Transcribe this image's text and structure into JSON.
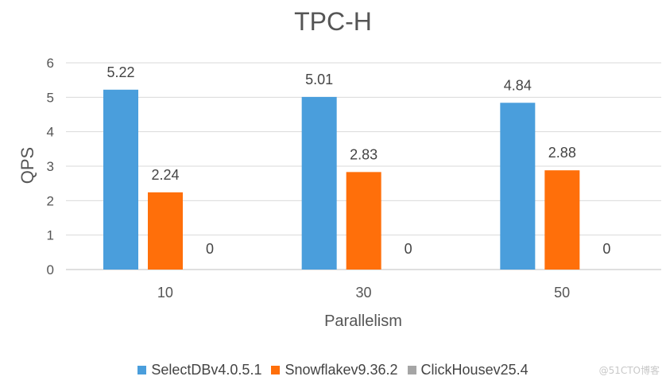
{
  "chart_data": {
    "type": "bar",
    "title": "TPC-H",
    "xlabel": "Parallelism",
    "ylabel": "QPS",
    "categories": [
      "10",
      "30",
      "50"
    ],
    "ylim": [
      0,
      6
    ],
    "yticks": [
      "0",
      "1",
      "2",
      "3",
      "4",
      "5",
      "6"
    ],
    "grid": true,
    "legend_position": "bottom",
    "series": [
      {
        "name": "SelectDBv4.0.5.1",
        "values": [
          5.22,
          5.01,
          4.84
        ],
        "labels": [
          "5.22",
          "5.01",
          "4.84"
        ],
        "color": "#4A9EDC"
      },
      {
        "name": "Snowflakev9.36.2",
        "values": [
          2.24,
          2.83,
          2.88
        ],
        "labels": [
          "2.24",
          "2.83",
          "2.88"
        ],
        "color": "#FF6F0A"
      },
      {
        "name": "ClickHousev25.4",
        "values": [
          0,
          0,
          0
        ],
        "labels": [
          "0",
          "0",
          "0"
        ],
        "color": "#A5A5A5"
      }
    ]
  },
  "watermark": "@51CTO博客"
}
